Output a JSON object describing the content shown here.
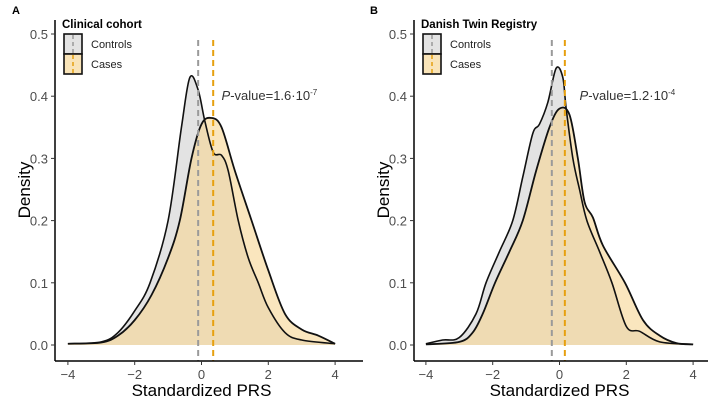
{
  "colors": {
    "controls": "#e3e3e3",
    "cases": "#f7d592",
    "controls_line": "#9a9a9a",
    "cases_line": "#e6a010"
  },
  "chart_data": [
    {
      "type": "area",
      "panel_label": "A",
      "legend_title": "Clinical cohort",
      "legend_placement": "top-left",
      "legend": [
        "Controls",
        "Cases"
      ],
      "xlabel": "Standardized PRS",
      "ylabel": "Density",
      "xlim": [
        -4,
        4
      ],
      "ylim": [
        0,
        0.5
      ],
      "xticks": [
        -4,
        -2,
        0,
        2,
        4
      ],
      "yticks": [
        "0.0",
        "0.1",
        "0.2",
        "0.3",
        "0.4",
        "0.5"
      ],
      "annotation": {
        "prefix": "P",
        "text": "-value=1.6·10",
        "exp": "-7"
      },
      "means": {
        "controls": -0.1,
        "cases": 0.35
      },
      "series": [
        {
          "name": "Controls",
          "points": [
            [
              -4,
              0.002
            ],
            [
              -3,
              0.005
            ],
            [
              -2.5,
              0.02
            ],
            [
              -2,
              0.055
            ],
            [
              -1.54,
              0.1
            ],
            [
              -1,
              0.2
            ],
            [
              -0.6,
              0.35
            ],
            [
              -0.35,
              0.43
            ],
            [
              -0.1,
              0.41
            ],
            [
              0.1,
              0.36
            ],
            [
              0.35,
              0.31
            ],
            [
              0.6,
              0.305
            ],
            [
              0.8,
              0.28
            ],
            [
              1.1,
              0.2
            ],
            [
              1.4,
              0.14
            ],
            [
              1.7,
              0.1
            ],
            [
              2,
              0.06
            ],
            [
              2.5,
              0.02
            ],
            [
              3,
              0.008
            ],
            [
              4,
              0.002
            ]
          ]
        },
        {
          "name": "Cases",
          "points": [
            [
              -4,
              0.002
            ],
            [
              -3,
              0.004
            ],
            [
              -2.5,
              0.015
            ],
            [
              -2,
              0.04
            ],
            [
              -1.5,
              0.08
            ],
            [
              -1,
              0.14
            ],
            [
              -0.65,
              0.2
            ],
            [
              -0.3,
              0.3
            ],
            [
              0,
              0.355
            ],
            [
              0.3,
              0.365
            ],
            [
              0.6,
              0.35
            ],
            [
              1,
              0.28
            ],
            [
              1.5,
              0.2
            ],
            [
              2,
              0.12
            ],
            [
              2.5,
              0.05
            ],
            [
              3,
              0.025
            ],
            [
              3.5,
              0.015
            ],
            [
              4,
              0.002
            ]
          ]
        }
      ]
    },
    {
      "type": "area",
      "panel_label": "B",
      "legend_title": "Danish Twin Registry",
      "legend_placement": "top-left",
      "legend": [
        "Controls",
        "Cases"
      ],
      "xlabel": "Standardized PRS",
      "ylabel": "Density",
      "xlim": [
        -4,
        4
      ],
      "ylim": [
        0,
        0.5
      ],
      "xticks": [
        -4,
        -2,
        0,
        2,
        4
      ],
      "yticks": [
        "0.0",
        "0.1",
        "0.2",
        "0.3",
        "0.4",
        "0.5"
      ],
      "annotation": {
        "prefix": "P",
        "text": "-value=1.2·10",
        "exp": "-4"
      },
      "means": {
        "controls": -0.23,
        "cases": 0.16
      },
      "series": [
        {
          "name": "Controls",
          "points": [
            [
              -4,
              0.002
            ],
            [
              -3.5,
              0.008
            ],
            [
              -3,
              0.012
            ],
            [
              -2.5,
              0.05
            ],
            [
              -2.2,
              0.1
            ],
            [
              -1.8,
              0.15
            ],
            [
              -1.4,
              0.2
            ],
            [
              -1.1,
              0.27
            ],
            [
              -0.8,
              0.34
            ],
            [
              -0.6,
              0.355
            ],
            [
              -0.35,
              0.39
            ],
            [
              -0.1,
              0.445
            ],
            [
              0.1,
              0.43
            ],
            [
              0.2,
              0.38
            ],
            [
              0.4,
              0.3
            ],
            [
              0.6,
              0.25
            ],
            [
              0.82,
              0.2
            ],
            [
              1.2,
              0.15
            ],
            [
              1.57,
              0.1
            ],
            [
              2,
              0.03
            ],
            [
              2.4,
              0.022
            ],
            [
              3,
              0.005
            ],
            [
              4,
              0.001
            ]
          ]
        },
        {
          "name": "Cases",
          "points": [
            [
              -4,
              0.001
            ],
            [
              -3,
              0.005
            ],
            [
              -2.6,
              0.02
            ],
            [
              -2.3,
              0.05
            ],
            [
              -1.93,
              0.1
            ],
            [
              -1.5,
              0.15
            ],
            [
              -1.1,
              0.2
            ],
            [
              -0.7,
              0.28
            ],
            [
              -0.3,
              0.35
            ],
            [
              0,
              0.38
            ],
            [
              0.3,
              0.37
            ],
            [
              0.55,
              0.3
            ],
            [
              0.75,
              0.23
            ],
            [
              1,
              0.205
            ],
            [
              1.3,
              0.16
            ],
            [
              1.96,
              0.1
            ],
            [
              2.5,
              0.04
            ],
            [
              3,
              0.015
            ],
            [
              3.5,
              0.003
            ],
            [
              4,
              0.001
            ]
          ]
        }
      ]
    }
  ]
}
